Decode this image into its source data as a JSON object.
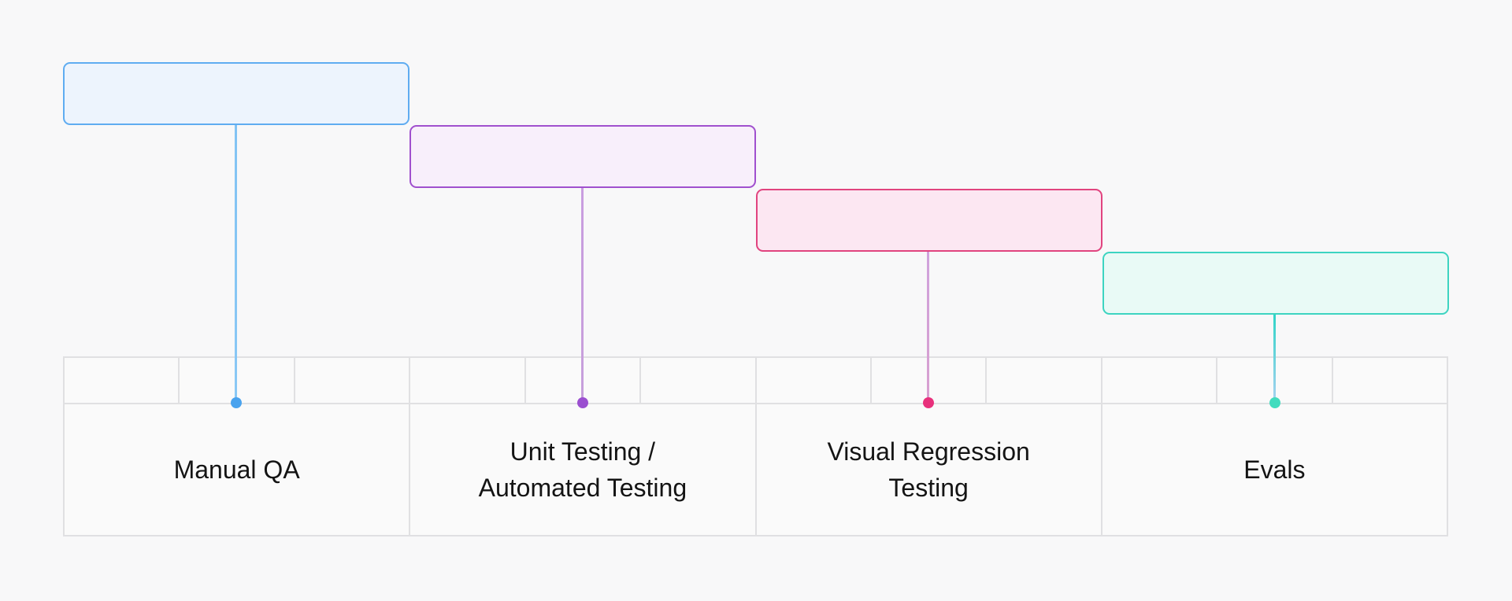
{
  "diagram": {
    "kind": "staircase-timeline-diagram",
    "background_color": "#f8f8f9",
    "text_color": "#141414",
    "table": {
      "fill_color": "#fafafa",
      "border_color": "#e0e0e2",
      "sections": 4,
      "ticks_per_section": 3
    },
    "stages": [
      {
        "label": "Manual QA",
        "lines": [
          "Manual QA"
        ],
        "box_fill": "#edf4fd",
        "box_border": "#5facf1",
        "connector_top": "#82c3f4",
        "connector_bottom": "#8ac8f5",
        "dot_color": "#4aa3ee"
      },
      {
        "label": "Unit Testing / Automated Testing",
        "lines": [
          "Unit Testing /",
          "Automated Testing"
        ],
        "box_fill": "#f8effb",
        "box_border": "#a050ce",
        "connector_top": "#c99ee0",
        "connector_bottom": "#c79fdb",
        "dot_color": "#9b4fd0"
      },
      {
        "label": "Visual Regression Testing",
        "lines": [
          "Visual Regression",
          "Testing"
        ],
        "box_fill": "#fce7f2",
        "box_border": "#e1447f",
        "connector_top": "#d0a2dc",
        "connector_bottom": "#d89fd0",
        "dot_color": "#e8317c"
      },
      {
        "label": "Evals",
        "lines": [
          "Evals"
        ],
        "box_fill": "#e9faf6",
        "box_border": "#3dd4c1",
        "connector_top": "#2fd4c7",
        "connector_bottom": "#a8d2f1",
        "dot_color": "#41dcbe"
      }
    ]
  }
}
